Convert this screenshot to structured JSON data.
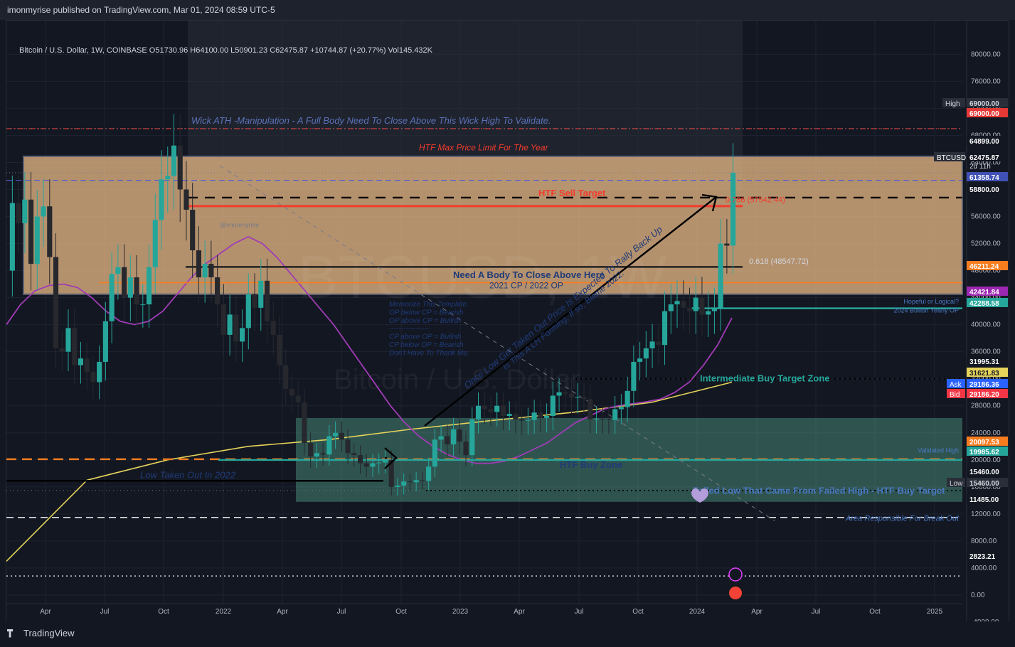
{
  "header": {
    "published": "imonmyrise published on TradingView.com, Mar 01, 2024 08:59 UTC-5",
    "symbol_line": "Bitcoin / U.S. Dollar, 1W, COINBASE  O51730.96  H64100.00  L50901.23  C62475.87  +10744.87 (+20.77%)  Vol145.432K"
  },
  "footer": {
    "brand": "TradingView"
  },
  "watermark": {
    "symbol": "BTCUSD, 1W",
    "name": "Bitcoin / U.S. Dollar"
  },
  "author_tag": "@imonmyrise",
  "chart_data": {
    "type": "candlestick",
    "x_ticks": [
      "Apr",
      "Jul",
      "Oct",
      "2022",
      "Apr",
      "Jul",
      "Oct",
      "2023",
      "Apr",
      "Jul",
      "Oct",
      "2024",
      "Apr",
      "Jul",
      "Oct",
      "2025"
    ],
    "y_ticks": [
      80000,
      76000,
      72000,
      68000,
      64000,
      60000,
      56000,
      52000,
      48000,
      44000,
      40000,
      36000,
      32000,
      28000,
      24000,
      20000,
      16000,
      12000,
      8000,
      4000,
      0,
      -4000
    ],
    "y_tick_labels": [
      "80000.00",
      "76000.00",
      "72000.00",
      "68000.00",
      "64000.00",
      "60000.00",
      "56000.00",
      "52000.00",
      "48000.00",
      "44000.00",
      "40000.00",
      "36000.00",
      "32000.00",
      "28000.00",
      "24000.00",
      "20000.00",
      "16000.00",
      "12000.00",
      "8000.00",
      "4000.00",
      "0.00",
      "-4000.00"
    ],
    "ylim": [
      -4500,
      83000
    ],
    "closes": [
      58000,
      55000,
      58500,
      49000,
      56000,
      57500,
      50000,
      36500,
      36000,
      39500,
      34000,
      35000,
      33000,
      31500,
      34500,
      40500,
      47500,
      48500,
      44000,
      47000,
      43000,
      43000,
      48500,
      55500,
      61500,
      62000,
      66500,
      60000,
      57000,
      51000,
      47000,
      49000,
      47000,
      43000,
      38500,
      41500,
      37500,
      39500,
      44500,
      42500,
      46500,
      40500,
      38500,
      34000,
      30500,
      29500,
      28500,
      22500,
      20500,
      21000,
      20800,
      23500,
      24000,
      23000,
      21000,
      20700,
      19500,
      19000,
      19500,
      19600,
      20000,
      16000,
      16200,
      16800,
      16700,
      17000,
      16900,
      19000,
      23000,
      23500,
      22300,
      24500,
      22700,
      20700,
      26000,
      28000,
      27500,
      27100,
      28000,
      26500,
      26800,
      26000,
      25800,
      25900,
      27000,
      26200,
      26500,
      29500,
      30000,
      29800,
      29200,
      29300,
      29000,
      26000,
      26100,
      26000,
      25900,
      27500,
      27800,
      30200,
      34500,
      35000,
      36500,
      37500,
      37000,
      42000,
      43000,
      43500,
      42500,
      42000,
      44000,
      41500,
      42000,
      42500,
      52000,
      51700,
      62475
    ],
    "ma_purple": [
      40000,
      43000,
      45000,
      45800,
      46000,
      45500,
      44000,
      42000,
      40500,
      40000,
      40500,
      42000,
      44500,
      47000,
      49000,
      50500,
      52000,
      53000,
      52000,
      50000,
      47500,
      45000,
      42500,
      40000,
      37000,
      34000,
      31000,
      28000,
      25500,
      23500,
      22000,
      20800,
      20000,
      19500,
      19500,
      19800,
      20500,
      21500,
      22500,
      24000,
      25500,
      26500,
      27500,
      28000,
      28300,
      28600,
      29000,
      30000,
      31500,
      34000,
      37000,
      41000
    ],
    "ma_yellow": [
      5000,
      17000,
      20000,
      22000,
      23000,
      24500,
      25800,
      27000,
      28500,
      31500
    ],
    "levels": [
      {
        "label": "High",
        "value": "69000.00"
      },
      {
        "label": "",
        "value": "69000.00"
      },
      {
        "label": "",
        "value": "64899.00"
      },
      {
        "label": "BTCUSD",
        "value": "62475.87",
        "sub": "2d 11h"
      },
      {
        "label": "",
        "value": "61358.74"
      },
      {
        "label": "",
        "value": "58800.00"
      },
      {
        "label": "",
        "value": "46211.24"
      },
      {
        "label": "",
        "value": "42421.84"
      },
      {
        "label": "",
        "value": "42288.58"
      },
      {
        "label": "",
        "value": "31995.31"
      },
      {
        "label": "",
        "value": "31621.83"
      },
      {
        "label": "Ask",
        "value": "29186.36"
      },
      {
        "label": "Bid",
        "value": "29186.20"
      },
      {
        "label": "",
        "value": "20097.53"
      },
      {
        "label": "",
        "value": "19985.62"
      },
      {
        "label": "",
        "value": "15460.00"
      },
      {
        "label": "Low",
        "value": "15460.00"
      },
      {
        "label": "",
        "value": "11485.00"
      },
      {
        "label": "",
        "value": "2823.21"
      }
    ],
    "fib_labels": [
      "0.786 (57542.44)",
      "0.618 (48547.72)"
    ],
    "annotations": {
      "wick_ath": "Wick ATH -Manipulation - A Full Body Need To Close Above This Wick High To Validate.",
      "htf_max": "HTF Max Price Limit For The Year",
      "htf_sell": "HTF Sell Target",
      "need_body": "Need A Body To Close Above Here",
      "cp_op": "2021 CP / 2022 OP",
      "memo": [
        "Memorize This Template.",
        "OP below CP = Bearish",
        "OP above CP = Bullish",
        "-----------------",
        "CP above OP = Bullish",
        "CP below OP = Bearish",
        "Don't Have To Thank Me."
      ],
      "diag1": "Once Low Get Taken Out Price Is Expected To Rally Back Up",
      "diag2": "Is This A LH Forming, If so, Blame 2022.",
      "hopeful": "Hopeful or Logical?",
      "bullish_op": "2024 Bullish Yearly OP",
      "intermediate": "Intermediate Buy Target Zone",
      "validated": "Validated High",
      "htf_buy": "HTF Buy Zone",
      "low_taken": "Low Taken Out In 2022",
      "failed_low": "Failed Low That Came From Failed High - HTF Buy Target",
      "area": "Area Responsible For Break Out"
    }
  }
}
